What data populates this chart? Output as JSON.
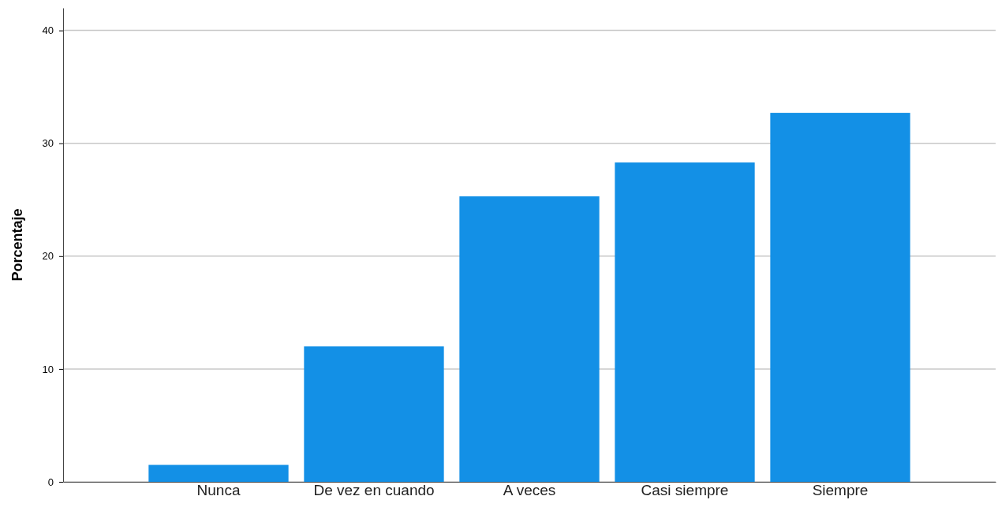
{
  "chart_data": {
    "type": "bar",
    "ylabel": "Porcentaje",
    "categories": [
      "Nunca",
      "De vez en cuando",
      "A veces",
      "Casi siempre",
      "Siempre"
    ],
    "values": [
      1.5,
      12.0,
      25.3,
      28.3,
      32.7
    ],
    "color": "#1390e6",
    "ylim": [
      0,
      42
    ],
    "yticks": [
      0,
      10,
      20,
      30,
      40
    ],
    "grid": "y"
  }
}
